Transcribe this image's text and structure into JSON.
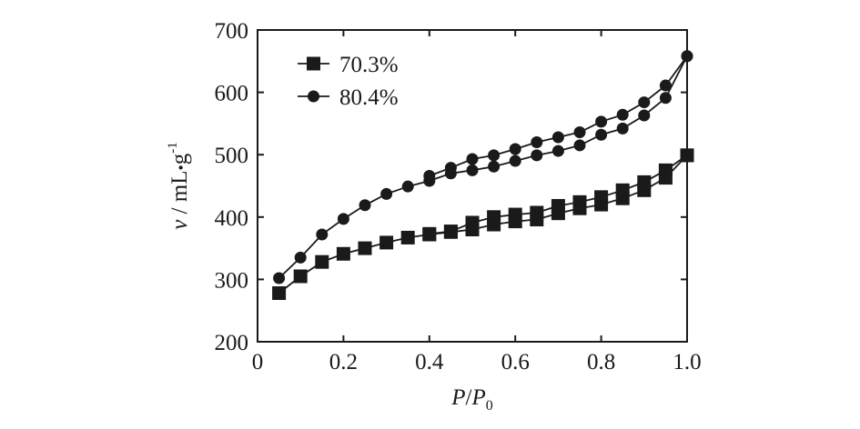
{
  "chart_data": {
    "type": "line",
    "xlabel": {
      "var": "P",
      "sep": "/",
      "var2": "P",
      "sub": "0"
    },
    "ylabel": {
      "var": "v",
      "unit": " / mL",
      "dot": "•",
      "unit2": "g",
      "sup": "-1"
    },
    "xlim": [
      0,
      1.0
    ],
    "ylim": [
      200,
      700
    ],
    "xticks": [
      "0",
      "0.2",
      "0.4",
      "0.6",
      "0.8",
      "1.0"
    ],
    "yticks": [
      "200",
      "300",
      "400",
      "500",
      "600",
      "700"
    ],
    "grid": false,
    "legend_position": "top-left",
    "series": [
      {
        "name": "70.3%",
        "marker": "square",
        "adsorption": [
          [
            0.05,
            278
          ],
          [
            0.1,
            305
          ],
          [
            0.15,
            328
          ],
          [
            0.2,
            341
          ],
          [
            0.25,
            350
          ],
          [
            0.3,
            359
          ],
          [
            0.35,
            367
          ],
          [
            0.4,
            372
          ],
          [
            0.45,
            376
          ],
          [
            0.5,
            380
          ],
          [
            0.55,
            388
          ],
          [
            0.6,
            393
          ],
          [
            0.65,
            396
          ],
          [
            0.7,
            406
          ],
          [
            0.75,
            414
          ],
          [
            0.8,
            420
          ],
          [
            0.85,
            430
          ],
          [
            0.9,
            443
          ],
          [
            0.95,
            463
          ],
          [
            1.0,
            499
          ]
        ],
        "desorption": [
          [
            1.0,
            499
          ],
          [
            0.95,
            475
          ],
          [
            0.9,
            456
          ],
          [
            0.85,
            443
          ],
          [
            0.8,
            432
          ],
          [
            0.75,
            424
          ],
          [
            0.7,
            418
          ],
          [
            0.65,
            407
          ],
          [
            0.6,
            404
          ],
          [
            0.55,
            400
          ],
          [
            0.5,
            391
          ],
          [
            0.45,
            377
          ],
          [
            0.4,
            373
          ]
        ]
      },
      {
        "name": "80.4%",
        "marker": "circle",
        "adsorption": [
          [
            0.05,
            302
          ],
          [
            0.1,
            335
          ],
          [
            0.15,
            372
          ],
          [
            0.2,
            397
          ],
          [
            0.25,
            419
          ],
          [
            0.3,
            437
          ],
          [
            0.35,
            449
          ],
          [
            0.4,
            458
          ],
          [
            0.45,
            470
          ],
          [
            0.5,
            475
          ],
          [
            0.55,
            481
          ],
          [
            0.6,
            490
          ],
          [
            0.65,
            499
          ],
          [
            0.7,
            506
          ],
          [
            0.75,
            515
          ],
          [
            0.8,
            532
          ],
          [
            0.85,
            542
          ],
          [
            0.9,
            563
          ],
          [
            0.95,
            591
          ],
          [
            1.0,
            658
          ]
        ],
        "desorption": [
          [
            1.0,
            658
          ],
          [
            0.95,
            611
          ],
          [
            0.9,
            584
          ],
          [
            0.85,
            564
          ],
          [
            0.8,
            553
          ],
          [
            0.75,
            536
          ],
          [
            0.7,
            528
          ],
          [
            0.65,
            520
          ],
          [
            0.6,
            509
          ],
          [
            0.55,
            499
          ],
          [
            0.5,
            493
          ],
          [
            0.45,
            479
          ],
          [
            0.4,
            466
          ]
        ]
      }
    ]
  }
}
